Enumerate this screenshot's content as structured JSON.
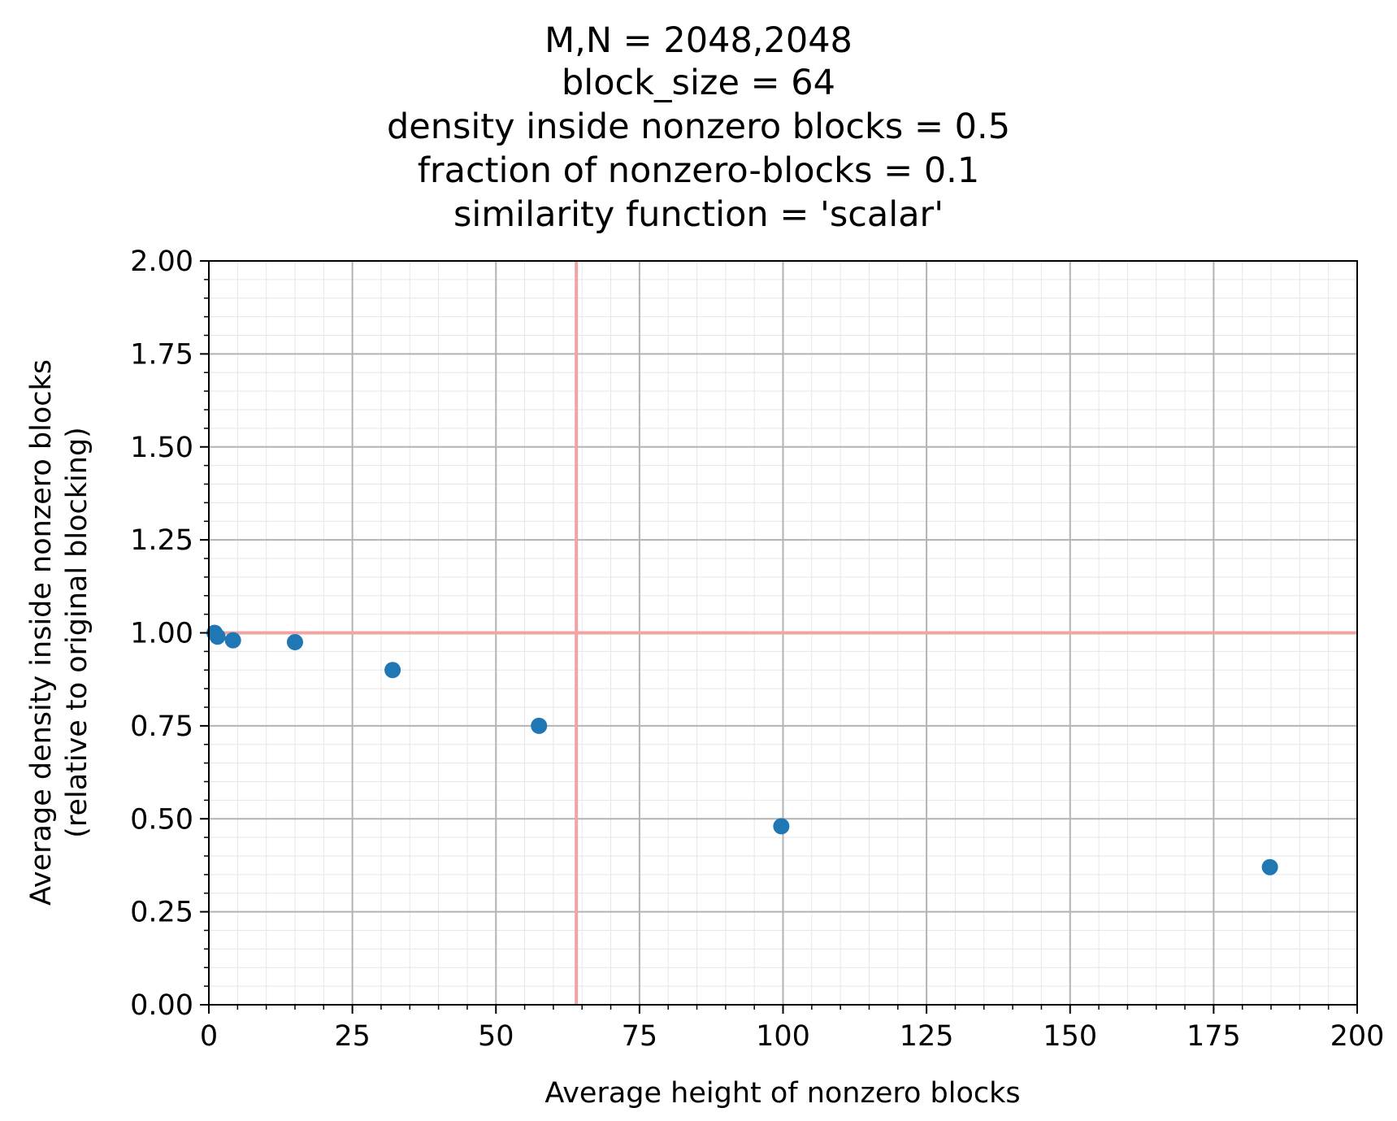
{
  "chart_data": {
    "type": "scatter",
    "title_lines": [
      "M,N = 2048,2048",
      "block_size = 64",
      "density inside nonzero blocks = 0.5",
      "fraction of nonzero-blocks = 0.1",
      "similarity function = 'scalar'"
    ],
    "xlabel": "Average height of nonzero blocks",
    "ylabel_lines": [
      "Average density inside nonzero blocks",
      "(relative to original blocking)"
    ],
    "xlim": [
      0,
      200
    ],
    "ylim": [
      0,
      2
    ],
    "x_ticks": [
      0,
      25,
      50,
      75,
      100,
      125,
      150,
      175,
      200
    ],
    "x_tick_labels": [
      "0",
      "25",
      "50",
      "75",
      "100",
      "125",
      "150",
      "175",
      "200"
    ],
    "y_ticks": [
      0,
      0.25,
      0.5,
      0.75,
      1.0,
      1.25,
      1.5,
      1.75,
      2.0
    ],
    "y_tick_labels": [
      "0.00",
      "0.25",
      "0.50",
      "0.75",
      "1.00",
      "1.25",
      "1.50",
      "1.75",
      "2.00"
    ],
    "grid": true,
    "minor_grid": true,
    "reference_lines": {
      "vertical_x": 64,
      "horizontal_y": 1.0,
      "color": "#f4a3a3"
    },
    "marker_color": "#1f77b4",
    "series": [
      {
        "x": [
          1.0,
          1.5,
          4.2,
          15.0,
          32.0,
          57.5,
          99.7,
          184.8
        ],
        "y": [
          1.0,
          0.99,
          0.98,
          0.975,
          0.9,
          0.75,
          0.48,
          0.37
        ]
      }
    ]
  }
}
